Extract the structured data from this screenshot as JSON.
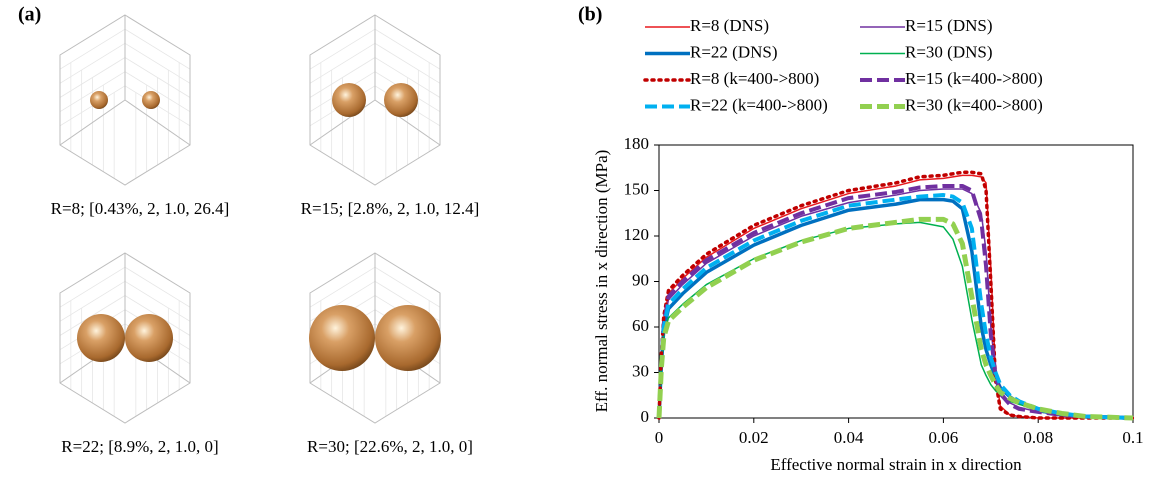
{
  "panel_a": {
    "label": "(a)",
    "captions": [
      "R=8; [0.43%, 2, 1.0, 26.4]",
      "R=15; [2.8%, 2, 1.0, 12.4]",
      "R=22; [8.9%, 2, 1.0, 0]",
      "R=30; [22.6%, 2, 1.0, 0]"
    ]
  },
  "chart_data": {
    "type": "line",
    "panel_label": "(b)",
    "x_label": "Effective normal strain in x direction",
    "y_label": "Eff. normal stress in x direction (MPa)",
    "x": [
      0,
      0.0005,
      0.001,
      0.002,
      0.005,
      0.01,
      0.02,
      0.03,
      0.04,
      0.05,
      0.055,
      0.06,
      0.062,
      0.064,
      0.066,
      0.068,
      0.069,
      0.07,
      0.071,
      0.072,
      0.074,
      0.076,
      0.08,
      0.085,
      0.09,
      0.1
    ],
    "series": [
      {
        "name": "R=8 (DNS)",
        "color": "#e8191f",
        "line_style": "solid",
        "line_width": 1.5,
        "values": [
          0,
          40,
          65,
          82,
          92,
          106,
          125,
          138,
          148,
          153,
          157,
          158,
          159,
          160,
          160,
          159,
          155,
          100,
          30,
          8,
          2,
          1,
          0,
          0,
          0,
          0
        ]
      },
      {
        "name": "R=15 (DNS)",
        "color": "#7030a0",
        "line_style": "solid",
        "line_width": 1.5,
        "values": [
          0,
          38,
          62,
          78,
          88,
          102,
          120,
          133,
          142,
          147,
          150,
          151,
          151,
          151,
          148,
          135,
          110,
          60,
          30,
          18,
          10,
          7,
          4,
          2,
          1,
          0
        ]
      },
      {
        "name": "R=22 (DNS)",
        "color": "#0070c0",
        "line_style": "solid",
        "line_width": 3.5,
        "values": [
          0,
          35,
          58,
          72,
          82,
          96,
          114,
          127,
          137,
          141,
          144,
          144,
          143,
          138,
          110,
          60,
          45,
          35,
          27,
          20,
          14,
          10,
          5,
          2,
          1,
          0
        ]
      },
      {
        "name": "R=30 (DNS)",
        "color": "#00b050",
        "line_style": "solid",
        "line_width": 1.5,
        "values": [
          0,
          33,
          55,
          66,
          75,
          88,
          105,
          117,
          125,
          128,
          129,
          126,
          118,
          100,
          65,
          35,
          28,
          22,
          18,
          15,
          11,
          9,
          6,
          3,
          1,
          0
        ]
      },
      {
        "name": "R=8 (k=400->800)",
        "color": "#c00000",
        "line_style": "dotted",
        "line_width": 3.5,
        "values": [
          0,
          42,
          67,
          84,
          94,
          108,
          127,
          140,
          150,
          155,
          159,
          160,
          161,
          162,
          162,
          161,
          150,
          90,
          25,
          6,
          2,
          1,
          0,
          0,
          0,
          0
        ]
      },
      {
        "name": "R=15 (k=400->800)",
        "color": "#7030a0",
        "line_style": "dashed",
        "line_width": 4,
        "values": [
          0,
          38,
          62,
          80,
          90,
          104,
          122,
          135,
          145,
          149,
          152,
          153,
          153,
          153,
          150,
          130,
          100,
          55,
          28,
          16,
          9,
          6,
          4,
          2,
          1,
          0
        ]
      },
      {
        "name": "R=22 (k=400->800)",
        "color": "#00b0f0",
        "line_style": "dashed",
        "line_width": 4,
        "values": [
          0,
          36,
          60,
          75,
          85,
          99,
          117,
          130,
          140,
          144,
          146,
          147,
          146,
          142,
          125,
          75,
          55,
          40,
          30,
          22,
          15,
          11,
          6,
          3,
          1,
          0
        ]
      },
      {
        "name": "R=30 (k=400->800)",
        "color": "#92d050",
        "line_style": "dashed",
        "line_width": 5,
        "values": [
          0,
          33,
          53,
          64,
          73,
          86,
          104,
          116,
          125,
          129,
          131,
          131,
          128,
          115,
          80,
          45,
          35,
          28,
          22,
          17,
          13,
          10,
          6,
          3,
          1,
          0
        ]
      }
    ],
    "xlim": [
      0,
      0.1
    ],
    "xticks": [
      0,
      0.02,
      0.04,
      0.06,
      0.08,
      0.1
    ],
    "ylim": [
      0,
      180
    ],
    "yticks": [
      0,
      30,
      60,
      90,
      120,
      150,
      180
    ],
    "grid": false
  }
}
